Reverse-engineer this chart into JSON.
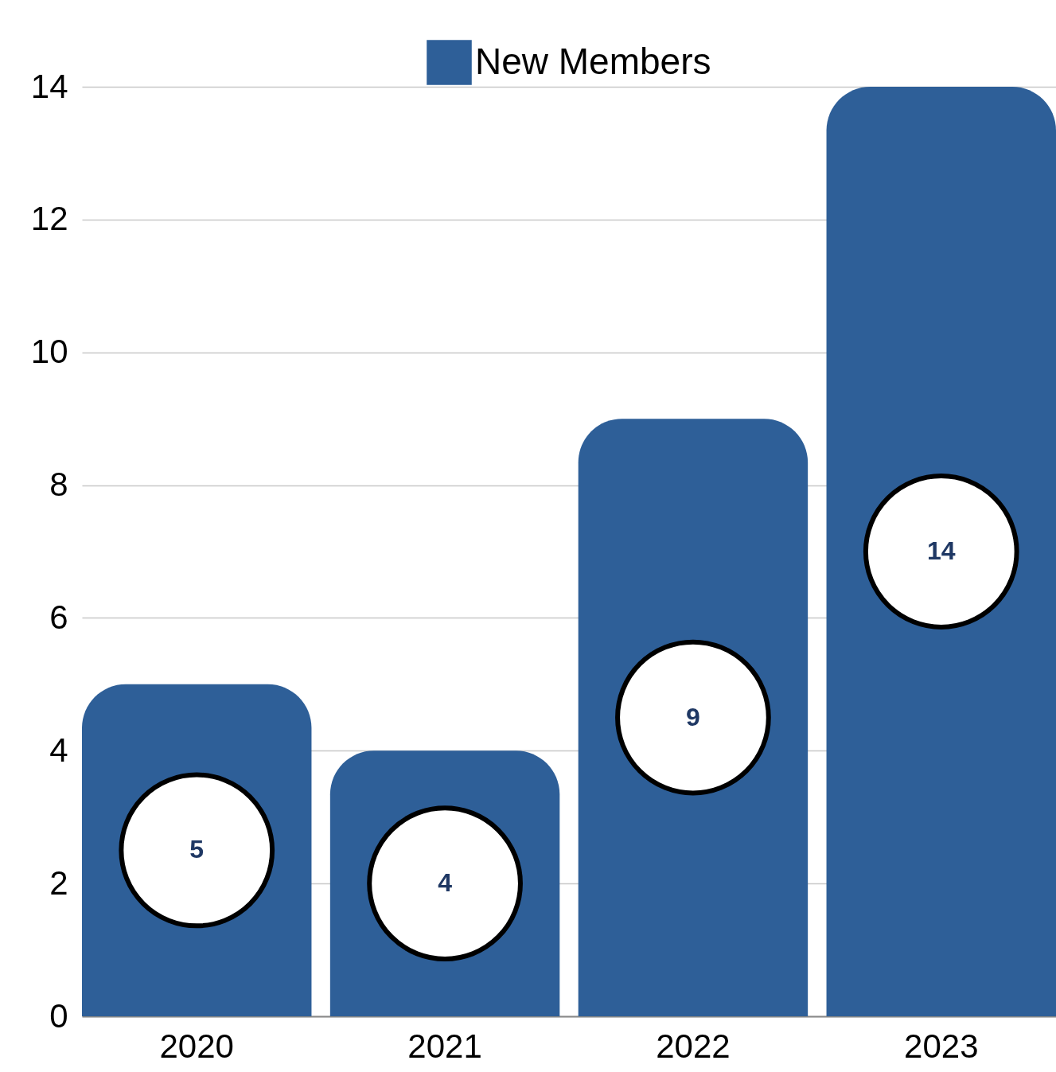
{
  "chart_data": {
    "type": "bar",
    "categories": [
      "2020",
      "2021",
      "2022",
      "2023"
    ],
    "series": [
      {
        "name": "New Members",
        "color": "#2e5f98",
        "values": [
          5,
          4,
          9,
          14
        ]
      }
    ],
    "ylim": [
      0,
      14
    ],
    "yticks": [
      0,
      2,
      4,
      6,
      8,
      10,
      12,
      14
    ],
    "grid": "y",
    "legend": "top",
    "data_labels": true
  }
}
